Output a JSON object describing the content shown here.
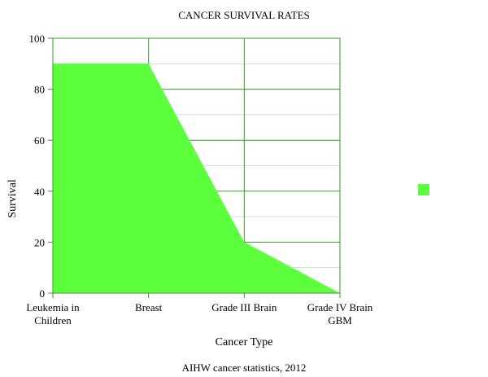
{
  "chart_data": {
    "type": "area",
    "title": "CANCER SURVIVAL RATES",
    "xlabel": "Cancer Type",
    "ylabel": "Survival",
    "caption": "AIHW cancer statistics, 2012",
    "categories": [
      [
        "Leukemia in",
        "Children"
      ],
      [
        "Breast"
      ],
      [
        "Grade III Brain"
      ],
      [
        "Grade IV Brain",
        "GBM"
      ]
    ],
    "series": [
      {
        "values": [
          90,
          90,
          20,
          0
        ],
        "color": "#5cff3c"
      }
    ],
    "ylim": [
      0,
      100
    ],
    "yticks": [
      0,
      20,
      40,
      60,
      80,
      100
    ],
    "grid": true,
    "grid_color": "#3a9a2a",
    "legend_position": "right"
  }
}
